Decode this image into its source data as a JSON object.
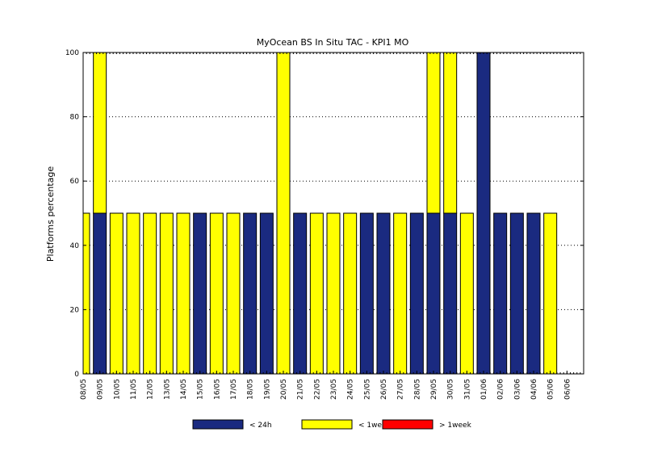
{
  "chart_data": {
    "type": "bar",
    "stacked": true,
    "title": "MyOcean  BS In Situ TAC - KPI1  MO",
    "xlabel": "",
    "ylabel": "Platforms percentage",
    "ylim": [
      0,
      100
    ],
    "yticks": [
      0,
      20,
      40,
      60,
      80,
      100
    ],
    "grid": "horizontal-dotted",
    "legend_position": "bottom",
    "categories": [
      "08/05",
      "09/05",
      "10/05",
      "11/05",
      "12/05",
      "13/05",
      "14/05",
      "15/05",
      "16/05",
      "17/05",
      "18/05",
      "19/05",
      "20/05",
      "21/05",
      "22/05",
      "23/05",
      "24/05",
      "25/05",
      "26/05",
      "27/05",
      "28/05",
      "29/05",
      "30/05",
      "31/05",
      "01/06",
      "02/06",
      "03/06",
      "04/06",
      "05/06",
      "06/06"
    ],
    "series": [
      {
        "name": "< 24h",
        "color": "#1a2a80",
        "values": [
          0,
          50,
          0,
          0,
          0,
          0,
          0,
          50,
          0,
          0,
          50,
          50,
          0,
          50,
          0,
          0,
          0,
          50,
          50,
          0,
          50,
          50,
          50,
          0,
          100,
          50,
          50,
          50,
          0,
          0
        ]
      },
      {
        "name": "< 1week",
        "color": "#ffff00",
        "values": [
          50,
          50,
          50,
          50,
          50,
          50,
          50,
          0,
          50,
          50,
          0,
          0,
          100,
          0,
          50,
          50,
          50,
          0,
          0,
          50,
          0,
          50,
          50,
          50,
          0,
          0,
          0,
          0,
          50,
          0
        ]
      },
      {
        "name": "> 1week",
        "color": "#ff0000",
        "values": [
          0,
          0,
          0,
          0,
          0,
          0,
          0,
          0,
          0,
          0,
          0,
          0,
          0,
          0,
          0,
          0,
          0,
          0,
          0,
          0,
          0,
          0,
          0,
          0,
          0,
          0,
          0,
          0,
          0,
          0
        ]
      }
    ]
  }
}
